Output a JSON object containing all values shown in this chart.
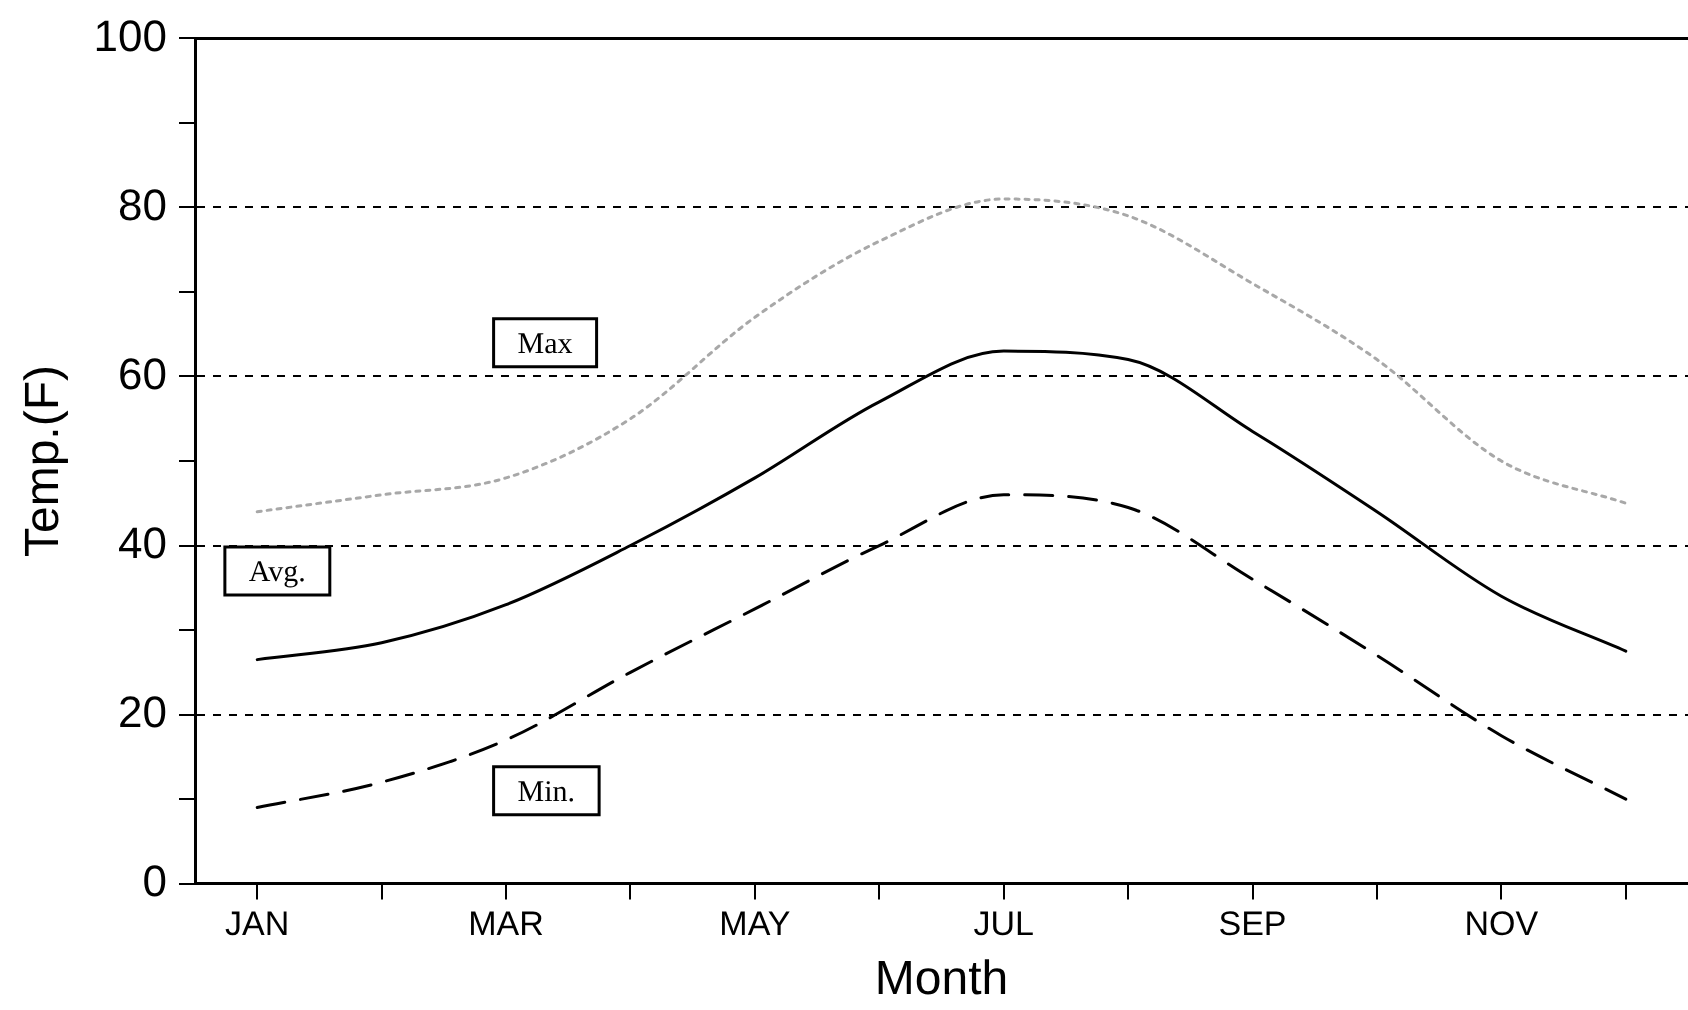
{
  "chart_data": {
    "type": "line",
    "xlabel": "Month",
    "ylabel": "Temp.(F)",
    "categories": [
      "JAN",
      null,
      "MAR",
      null,
      "MAY",
      null,
      "JUL",
      null,
      "SEP",
      null,
      "NOV",
      null
    ],
    "series": [
      {
        "color": "#a8a8a8",
        "line_style": "dotted",
        "values": [
          44,
          46,
          48,
          55,
          67,
          76,
          81,
          79,
          71,
          62,
          50,
          45
        ]
      },
      {
        "color": "#000000",
        "line_style": "solid",
        "values": [
          26.5,
          28.5,
          33,
          40,
          48,
          57,
          63,
          62,
          53.5,
          44,
          34,
          27.5
        ]
      },
      {
        "color": "#000000",
        "line_style": "dashed",
        "values": [
          9,
          12,
          17,
          25,
          32.5,
          40,
          46,
          44.5,
          36,
          27,
          17.5,
          10
        ]
      }
    ],
    "ylim": [
      0,
      100
    ],
    "yticks": [
      0,
      {
        "value": 10,
        "label": null
      },
      20,
      {
        "value": 30,
        "label": null
      },
      40,
      {
        "value": 50,
        "label": null
      },
      60,
      {
        "value": 70,
        "label": null
      },
      80,
      {
        "value": 90,
        "label": null
      },
      100
    ],
    "grid": "y",
    "legend": false,
    "marker": "none",
    "annotations": [
      "Max",
      "Avg.",
      "Min."
    ]
  }
}
